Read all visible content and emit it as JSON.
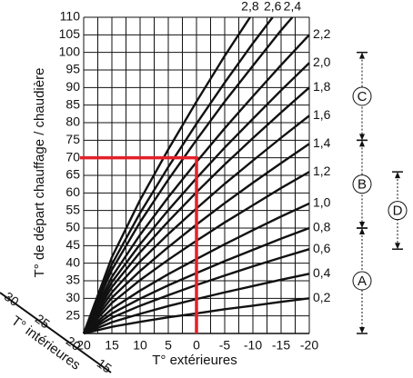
{
  "chart_data": {
    "type": "line",
    "ylabel": "T° de départ chauffage / chaudière",
    "xlabel": "T° extérieures",
    "x": [
      20,
      15,
      10,
      5,
      0,
      -5,
      -10,
      -15,
      -20
    ],
    "xlim": [
      20,
      -20
    ],
    "xticks": [
      20,
      15,
      10,
      5,
      0,
      -5,
      -10,
      -15,
      -20
    ],
    "ylim": [
      20,
      110
    ],
    "yticks": [
      25,
      30,
      35,
      40,
      45,
      50,
      55,
      60,
      65,
      70,
      75,
      80,
      85,
      90,
      95,
      100,
      105,
      110
    ],
    "grid": true,
    "series": [
      {
        "name": "0,2",
        "color": "#111",
        "values": [
          20,
          21.9,
          23.3,
          24.6,
          25.7,
          26.9,
          27.9,
          29,
          30
        ]
      },
      {
        "name": "0,4",
        "color": "#111",
        "values": [
          20,
          23.2,
          25.6,
          27.8,
          29.8,
          31.7,
          33.5,
          35.3,
          37
        ]
      },
      {
        "name": "0,6",
        "color": "#111",
        "values": [
          20,
          24.5,
          27.9,
          30.9,
          33.8,
          36.5,
          39.1,
          41.6,
          44
        ]
      },
      {
        "name": "0,8",
        "color": "#111",
        "values": [
          20,
          25.7,
          29.9,
          33.7,
          37.2,
          40.6,
          43.8,
          47,
          50
        ]
      },
      {
        "name": "1,0",
        "color": "#111",
        "values": [
          20,
          27,
          32.2,
          36.9,
          41.2,
          45.4,
          49.4,
          53.3,
          57
        ]
      },
      {
        "name": "1,2",
        "color": "#111",
        "values": [
          20,
          28.7,
          35.2,
          41,
          46.4,
          51.6,
          56.5,
          61.4,
          66
        ]
      },
      {
        "name": "1,4",
        "color": "#111",
        "values": [
          20,
          30.2,
          37.8,
          44.6,
          51,
          57.1,
          62.9,
          68.5,
          74
        ]
      },
      {
        "name": "1,6",
        "color": "#111",
        "values": [
          20,
          31.7,
          40.5,
          48.3,
          55.6,
          62.6,
          69.2,
          75.7,
          82
        ]
      },
      {
        "name": "1,8",
        "color": "#111",
        "values": [
          20,
          33.2,
          43.1,
          51.9,
          60.2,
          68.1,
          75.6,
          82.9,
          90
        ]
      },
      {
        "name": "2,0",
        "color": "#111",
        "values": [
          20,
          34.6,
          45.4,
          55.1,
          64.2,
          72.9,
          81.1,
          89.2,
          97
        ]
      },
      {
        "name": "2,2",
        "color": "#111",
        "values": [
          20,
          36.1,
          48.1,
          58.8,
          68.8,
          78.4,
          87.5,
          96.4,
          105
        ]
      },
      {
        "name": "2,4",
        "color": "#111",
        "x": [
          20,
          15,
          10,
          5,
          0,
          -5,
          -10,
          -15,
          -17
        ],
        "values": [
          20,
          38.1,
          51.7,
          63.8,
          75.1,
          86,
          96.2,
          106.3,
          110
        ]
      },
      {
        "name": "2,6",
        "color": "#111",
        "x": [
          20,
          15,
          10,
          5,
          0,
          -5,
          -10,
          -13.5
        ],
        "values": [
          20,
          39.7,
          54.3,
          67.4,
          79.7,
          91.4,
          102.6,
          110
        ]
      },
      {
        "name": "2,8",
        "color": "#111",
        "x": [
          20,
          15,
          10,
          5,
          0,
          -5,
          -9.5
        ],
        "values": [
          20,
          41.7,
          58,
          72.4,
          86,
          99,
          110
        ]
      }
    ],
    "highlight": {
      "x": 0,
      "y": 70,
      "color": "#e4202a"
    },
    "interior_axis": {
      "label": "T° intérieures",
      "ticks": [
        30,
        25,
        20,
        15
      ]
    },
    "zones": [
      {
        "label": "C",
        "range": [
          100,
          75
        ]
      },
      {
        "label": "B",
        "range": [
          75,
          50
        ]
      },
      {
        "label": "A",
        "range": [
          50,
          20
        ]
      },
      {
        "label": "D",
        "range": [
          66,
          44
        ]
      }
    ]
  }
}
